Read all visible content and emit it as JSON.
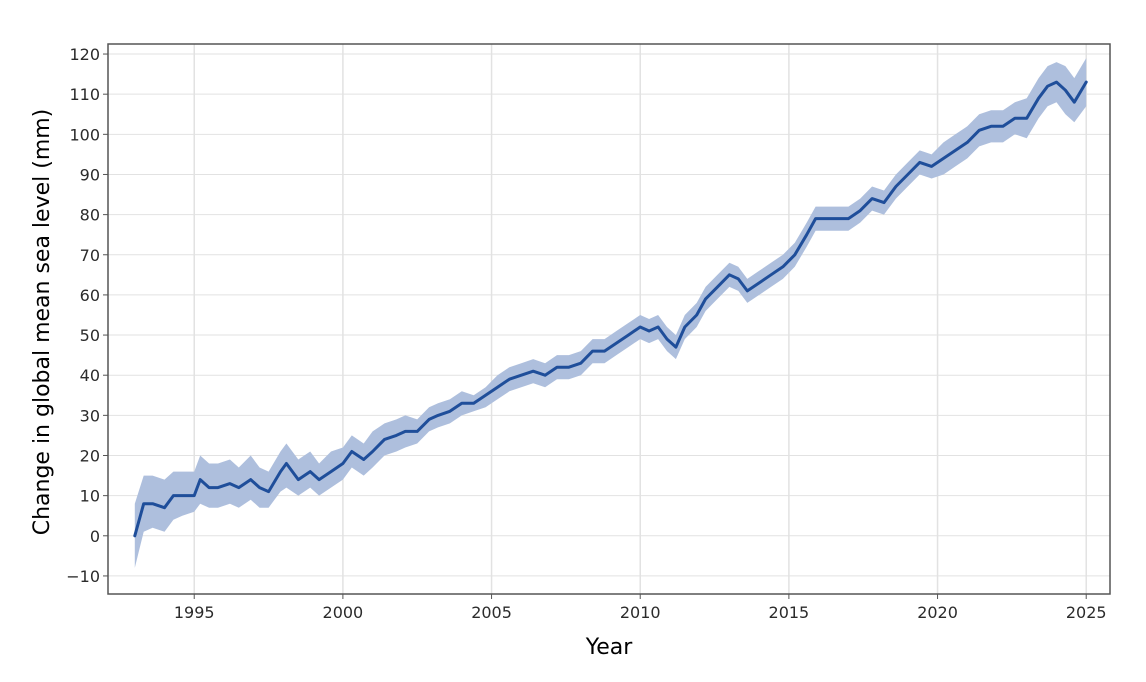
{
  "chart_data": {
    "type": "area",
    "title": "",
    "xlabel": "Year",
    "ylabel": "Change in global mean sea level (mm)",
    "xlim": [
      1992.1,
      2025.8
    ],
    "ylim": [
      -14.5,
      122.5
    ],
    "xticks": [
      1995,
      2000,
      2005,
      2010,
      2015,
      2020,
      2025
    ],
    "yticks": [
      -10,
      0,
      10,
      20,
      30,
      40,
      50,
      60,
      70,
      80,
      90,
      100,
      110,
      120
    ],
    "xtick_labels": [
      "1995",
      "2000",
      "2005",
      "2010",
      "2015",
      "2020",
      "2025"
    ],
    "ytick_labels": [
      "−10",
      "0",
      "10",
      "20",
      "30",
      "40",
      "50",
      "60",
      "70",
      "80",
      "90",
      "100",
      "110",
      "120"
    ],
    "grid": true,
    "colors": {
      "line": "#1f4e9a",
      "band": "#aebfdd",
      "grid": "#e2e2e2",
      "frame": "#555555"
    },
    "series": [
      {
        "x": [
          1993.0,
          1993.3,
          1993.6,
          1994.0,
          1994.3,
          1994.6,
          1995.0,
          1995.2,
          1995.5,
          1995.8,
          1996.2,
          1996.5,
          1996.9,
          1997.2,
          1997.5,
          1997.9,
          1998.1,
          1998.5,
          1998.9,
          1999.2,
          1999.6,
          2000.0,
          2000.3,
          2000.7,
          2001.0,
          2001.4,
          2001.8,
          2002.1,
          2002.5,
          2002.9,
          2003.2,
          2003.6,
          2004.0,
          2004.4,
          2004.8,
          2005.2,
          2005.6,
          2006.0,
          2006.4,
          2006.8,
          2007.2,
          2007.6,
          2008.0,
          2008.4,
          2008.8,
          2009.2,
          2009.6,
          2010.0,
          2010.3,
          2010.6,
          2010.9,
          2011.2,
          2011.5,
          2011.9,
          2012.2,
          2012.6,
          2013.0,
          2013.3,
          2013.6,
          2014.0,
          2014.4,
          2014.8,
          2015.2,
          2015.6,
          2015.9,
          2016.3,
          2016.6,
          2017.0,
          2017.4,
          2017.8,
          2018.2,
          2018.6,
          2019.0,
          2019.4,
          2019.8,
          2020.2,
          2020.6,
          2021.0,
          2021.4,
          2021.8,
          2022.2,
          2022.6,
          2023.0,
          2023.4,
          2023.7,
          2024.0,
          2024.3,
          2024.6,
          2025.0
        ],
        "y": [
          0,
          8,
          8,
          7,
          10,
          10,
          10,
          14,
          12,
          12,
          13,
          12,
          14,
          12,
          11,
          16,
          18,
          14,
          16,
          14,
          16,
          18,
          21,
          19,
          21,
          24,
          25,
          26,
          26,
          29,
          30,
          31,
          33,
          33,
          35,
          37,
          39,
          40,
          41,
          40,
          42,
          42,
          43,
          46,
          46,
          48,
          50,
          52,
          51,
          52,
          49,
          47,
          52,
          55,
          59,
          62,
          65,
          64,
          61,
          63,
          65,
          67,
          70,
          75,
          79,
          79,
          79,
          79,
          81,
          84,
          83,
          87,
          90,
          93,
          92,
          94,
          96,
          98,
          101,
          102,
          102,
          104,
          104,
          109,
          112,
          113,
          111,
          108,
          113
        ],
        "lower": [
          -8,
          1,
          2,
          1,
          4,
          5,
          6,
          8,
          7,
          7,
          8,
          7,
          9,
          7,
          7,
          11,
          12,
          10,
          12,
          10,
          12,
          14,
          17,
          15,
          17,
          20,
          21,
          22,
          23,
          26,
          27,
          28,
          30,
          31,
          32,
          34,
          36,
          37,
          38,
          37,
          39,
          39,
          40,
          43,
          43,
          45,
          47,
          49,
          48,
          49,
          46,
          44,
          49,
          52,
          56,
          59,
          62,
          61,
          58,
          60,
          62,
          64,
          67,
          72,
          76,
          76,
          76,
          76,
          78,
          81,
          80,
          84,
          87,
          90,
          89,
          90,
          92,
          94,
          97,
          98,
          98,
          100,
          99,
          104,
          107,
          108,
          105,
          103,
          107
        ],
        "upper": [
          8,
          15,
          15,
          14,
          16,
          16,
          16,
          20,
          18,
          18,
          19,
          17,
          20,
          17,
          16,
          21,
          23,
          19,
          21,
          18,
          21,
          22,
          25,
          23,
          26,
          28,
          29,
          30,
          29,
          32,
          33,
          34,
          36,
          35,
          37,
          40,
          42,
          43,
          44,
          43,
          45,
          45,
          46,
          49,
          49,
          51,
          53,
          55,
          54,
          55,
          52,
          50,
          55,
          58,
          62,
          65,
          68,
          67,
          64,
          66,
          68,
          70,
          73,
          78,
          82,
          82,
          82,
          82,
          84,
          87,
          86,
          90,
          93,
          96,
          95,
          98,
          100,
          102,
          105,
          106,
          106,
          108,
          109,
          114,
          117,
          118,
          117,
          114,
          119
        ]
      }
    ]
  }
}
